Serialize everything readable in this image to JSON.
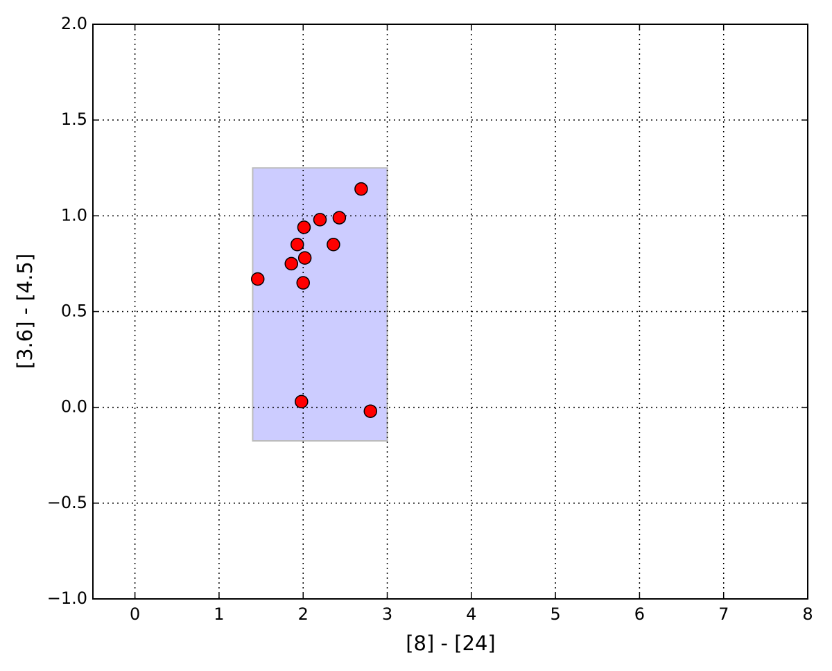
{
  "chart_data": {
    "type": "scatter",
    "x_label": "[8] - [24]",
    "y_label": "[3.6] - [4.5]",
    "x": [
      1.46,
      1.86,
      1.93,
      2.01,
      2.02,
      2.0,
      2.2,
      2.43,
      2.36,
      2.69,
      1.98,
      2.8
    ],
    "series": [
      {
        "color": "#ff0000",
        "edgecolor": "#000000",
        "values": [
          0.67,
          0.75,
          0.85,
          0.94,
          0.78,
          0.65,
          0.98,
          0.99,
          0.85,
          1.14,
          0.03,
          -0.02
        ]
      }
    ],
    "region": {
      "x": [
        1.4,
        3.0
      ],
      "y": [
        -0.175,
        1.25
      ],
      "color": "#ccccff",
      "edgecolor": "#bbbbbb"
    },
    "xlim": [
      -0.5,
      8
    ],
    "ylim": [
      -1,
      2
    ],
    "xticks": [
      0,
      1,
      2,
      3,
      4,
      5,
      6,
      7,
      8
    ],
    "yticks": [
      {
        "value": -1,
        "label": "−1.0"
      },
      {
        "value": -0.5,
        "label": "−0.5"
      },
      {
        "value": 0,
        "label": "0.0"
      },
      {
        "value": 0.5,
        "label": "0.5"
      },
      {
        "value": 1,
        "label": "1.0"
      },
      {
        "value": 1.5,
        "label": "1.5"
      },
      {
        "value": 2,
        "label": "2.0"
      }
    ],
    "grid": true
  }
}
